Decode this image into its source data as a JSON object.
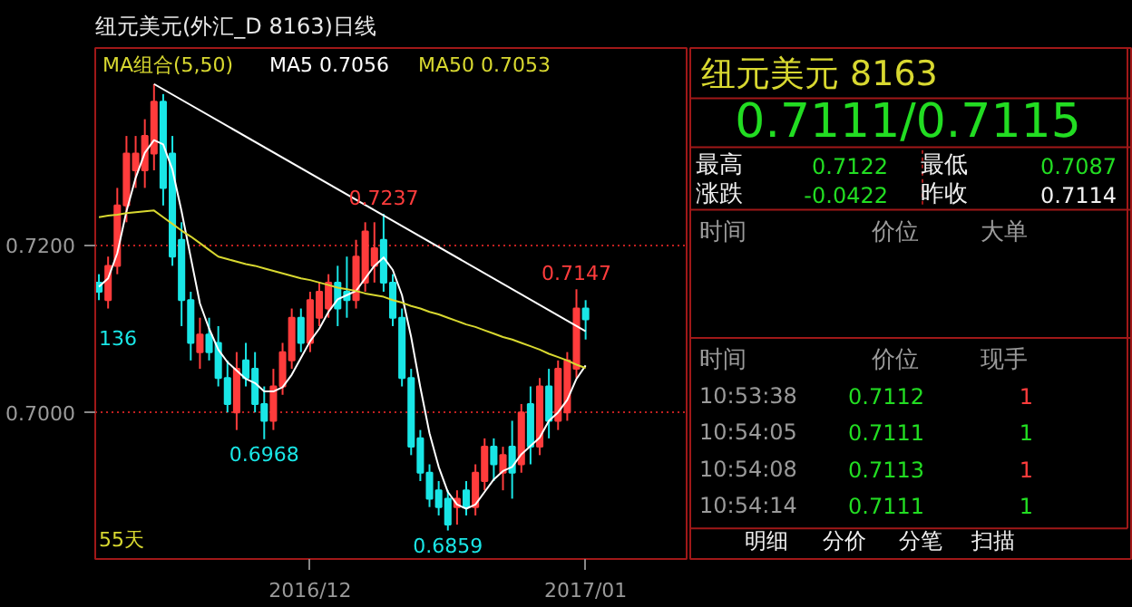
{
  "chart_data": [
    {
      "type": "candlestick",
      "title": "纽元美元(外汇_D 8163)日线",
      "categories": [
        null,
        null,
        null,
        null,
        null,
        null,
        null,
        null,
        null,
        null,
        null,
        null,
        null,
        null,
        null,
        null,
        null,
        null,
        null,
        null,
        null,
        null,
        null,
        "2016/12",
        null,
        null,
        null,
        null,
        null,
        null,
        null,
        null,
        null,
        null,
        null,
        null,
        null,
        null,
        null,
        null,
        null,
        null,
        null,
        null,
        null,
        null,
        null,
        null,
        null,
        null,
        null,
        null,
        null,
        "2017/01"
      ],
      "ohlc": [
        [
          0.7155,
          0.7165,
          0.7134,
          0.7144
        ],
        [
          0.7134,
          0.7186,
          0.7124,
          0.7175
        ],
        [
          0.7175,
          0.7268,
          0.7165,
          0.7247
        ],
        [
          0.7247,
          0.733,
          0.7227,
          0.7309
        ],
        [
          0.7289,
          0.733,
          0.7268,
          0.7309
        ],
        [
          0.7289,
          0.735,
          0.7268,
          0.733
        ],
        [
          0.7309,
          0.7392,
          0.7289,
          0.7371
        ],
        [
          0.7371,
          0.738,
          0.7247,
          0.7268
        ],
        [
          0.7309,
          0.733,
          0.7175,
          0.7186
        ],
        [
          0.7206,
          0.7227,
          0.7103,
          0.7134
        ],
        [
          0.7134,
          0.7144,
          0.7062,
          0.7083
        ],
        [
          0.7072,
          0.7113,
          0.7052,
          0.7093
        ],
        [
          0.7093,
          0.7113,
          0.7062,
          0.7072
        ],
        [
          0.7083,
          0.7103,
          0.7031,
          0.7041
        ],
        [
          0.7041,
          0.7062,
          0.7,
          0.701
        ],
        [
          0.7,
          0.7072,
          0.6979,
          0.7052
        ],
        [
          0.7062,
          0.7083,
          0.7031,
          0.7041
        ],
        [
          0.7052,
          0.7072,
          0.7,
          0.701
        ],
        [
          0.701,
          0.7031,
          0.6968,
          0.699
        ],
        [
          0.699,
          0.7052,
          0.6979,
          0.7031
        ],
        [
          0.7031,
          0.7083,
          0.7021,
          0.7072
        ],
        [
          0.7062,
          0.7124,
          0.7052,
          0.7113
        ],
        [
          0.7113,
          0.7124,
          0.7072,
          0.7083
        ],
        [
          0.7083,
          0.7144,
          0.7072,
          0.7134
        ],
        [
          0.7113,
          0.7155,
          0.7103,
          0.7144
        ],
        [
          0.7124,
          0.7165,
          0.7113,
          0.7155
        ],
        [
          0.7155,
          0.7175,
          0.7103,
          0.7124
        ],
        [
          0.7144,
          0.7186,
          0.7113,
          0.7134
        ],
        [
          0.7134,
          0.7206,
          0.7124,
          0.7186
        ],
        [
          0.7155,
          0.7227,
          0.7144,
          0.7216
        ],
        [
          0.7175,
          0.7227,
          0.7155,
          0.7196
        ],
        [
          0.7206,
          0.7237,
          0.7144,
          0.7155
        ],
        [
          0.7155,
          0.7165,
          0.7103,
          0.7113
        ],
        [
          0.7113,
          0.7124,
          0.7031,
          0.7041
        ],
        [
          0.7041,
          0.7052,
          0.6949,
          0.6959
        ],
        [
          0.6969,
          0.6979,
          0.6918,
          0.6928
        ],
        [
          0.6928,
          0.6938,
          0.6887,
          0.6897
        ],
        [
          0.6907,
          0.6918,
          0.6877,
          0.6887
        ],
        [
          0.6897,
          0.6907,
          0.6859,
          0.6866
        ],
        [
          0.6887,
          0.6907,
          0.6866,
          0.6897
        ],
        [
          0.6907,
          0.6918,
          0.6877,
          0.6887
        ],
        [
          0.6887,
          0.6938,
          0.6877,
          0.6928
        ],
        [
          0.6918,
          0.6969,
          0.6907,
          0.6959
        ],
        [
          0.6959,
          0.6969,
          0.6918,
          0.6938
        ],
        [
          0.6928,
          0.6959,
          0.6907,
          0.6949
        ],
        [
          0.6959,
          0.699,
          0.6897,
          0.6928
        ],
        [
          0.6938,
          0.701,
          0.6928,
          0.7
        ],
        [
          0.701,
          0.7031,
          0.6938,
          0.6959
        ],
        [
          0.6959,
          0.7041,
          0.6949,
          0.7031
        ],
        [
          0.7031,
          0.7052,
          0.6969,
          0.699
        ],
        [
          0.699,
          0.7062,
          0.6979,
          0.7052
        ],
        [
          0.7,
          0.7072,
          0.699,
          0.7062
        ],
        [
          0.7052,
          0.7147,
          0.7041,
          0.7124
        ],
        [
          0.7124,
          0.7134,
          0.7087,
          0.7111
        ]
      ],
      "series": [
        {
          "type": "line",
          "name": "MA5 0.7056",
          "color": "#ffffff",
          "values": [
            0.715,
            0.716,
            0.719,
            0.724,
            0.728,
            0.731,
            0.7325,
            0.732,
            0.729,
            0.724,
            0.7185,
            0.713,
            0.71,
            0.7075,
            0.706,
            0.705,
            0.704,
            0.7035,
            0.7025,
            0.7025,
            0.703,
            0.7045,
            0.7065,
            0.7085,
            0.71,
            0.712,
            0.7135,
            0.714,
            0.7145,
            0.716,
            0.7175,
            0.7185,
            0.717,
            0.714,
            0.709,
            0.703,
            0.6975,
            0.6935,
            0.6905,
            0.689,
            0.6885,
            0.689,
            0.6905,
            0.692,
            0.693,
            0.6935,
            0.695,
            0.696,
            0.697,
            0.699,
            0.7,
            0.7015,
            0.704,
            0.7056
          ]
        },
        {
          "type": "line",
          "name": "MA50 0.7053",
          "color": "#d8d830",
          "values": [
            0.7233,
            0.7235,
            0.7236,
            0.7238,
            0.7239,
            0.724,
            0.7241,
            0.7233,
            0.7225,
            0.7217,
            0.721,
            0.7202,
            0.7194,
            0.7186,
            0.7183,
            0.718,
            0.7177,
            0.7175,
            0.7172,
            0.7169,
            0.7166,
            0.7163,
            0.716,
            0.7158,
            0.7155,
            0.7152,
            0.7149,
            0.7147,
            0.7145,
            0.7142,
            0.714,
            0.7138,
            0.7134,
            0.7131,
            0.7127,
            0.7124,
            0.712,
            0.7117,
            0.7113,
            0.7109,
            0.7105,
            0.7102,
            0.7098,
            0.7094,
            0.709,
            0.7087,
            0.7083,
            0.7079,
            0.7075,
            0.707,
            0.7066,
            0.7062,
            0.7057,
            0.7053
          ]
        },
        {
          "type": "line",
          "color": "#ffffff",
          "values": [
            null,
            null,
            null,
            null,
            null,
            null,
            0.7392,
            null,
            null,
            null,
            null,
            null,
            null,
            null,
            null,
            null,
            null,
            null,
            null,
            null,
            null,
            null,
            null,
            null,
            null,
            null,
            null,
            null,
            null,
            null,
            null,
            null,
            null,
            null,
            null,
            null,
            null,
            null,
            null,
            null,
            null,
            null,
            null,
            null,
            null,
            null,
            null,
            null,
            null,
            null,
            null,
            null,
            null,
            0.7097
          ]
        }
      ],
      "legend_title": "MA组合(5,50)",
      "legend": "top",
      "ylim": [
        0.6825,
        0.7435
      ],
      "yticks": [
        {
          "value": 0.7,
          "label": "0.7000"
        },
        {
          "value": 0.72,
          "label": "0.7200"
        }
      ],
      "grid": "y",
      "annotations": [
        {
          "text": "0.7237",
          "y": 0.7237
        },
        {
          "text": "0.7147",
          "y": 0.7147
        },
        {
          "text": "0.6968",
          "y": 0.6968
        },
        {
          "text": "0.6859",
          "y": 0.6859
        },
        "136",
        "55天"
      ]
    },
    {
      "type": "other",
      "title": "纽元美元  8163",
      "annotations": [
        "0.7111/0.7115",
        "最高",
        "0.7122",
        "最低",
        "0.7087",
        "涨跌",
        "-0.0422",
        "昨收",
        "0.7114",
        "时间",
        "价位",
        "大单",
        "时间",
        "价位",
        "现手",
        "10:53:38",
        "0.7112",
        "1",
        "10:54:05",
        "0.7111",
        "1",
        "10:54:08",
        "0.7113",
        "1",
        "10:54:14",
        "0.7111",
        "1",
        "明细",
        "分价",
        "分笔",
        "扫描"
      ]
    }
  ]
}
